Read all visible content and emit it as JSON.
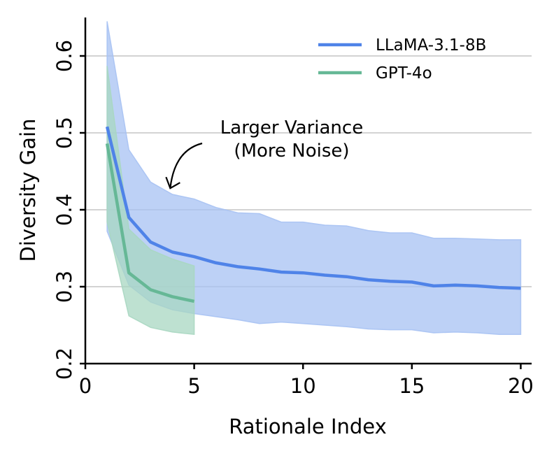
{
  "chart_data": {
    "type": "line",
    "xlabel": "Rationale Index",
    "ylabel": "Diversity Gain",
    "xlim": [
      0,
      20.5
    ],
    "ylim": [
      0.2,
      0.65
    ],
    "xticks": [
      0,
      5,
      10,
      15,
      20
    ],
    "yticks": [
      0.2,
      0.3,
      0.4,
      0.5,
      0.6
    ],
    "xtick_labels": [
      "0",
      "5",
      "10",
      "15",
      "20"
    ],
    "ytick_labels": [
      "0.2",
      "0.3",
      "0.4",
      "0.5",
      "0.6"
    ],
    "grid": "horizontal",
    "legend_position": "top-right",
    "series": [
      {
        "name": "LLaMA-3.1-8B",
        "color": "#4f83e8",
        "band_color": "#a7c2f3",
        "x": [
          1,
          2,
          3,
          4,
          5,
          6,
          7,
          8,
          9,
          10,
          11,
          12,
          13,
          14,
          15,
          16,
          17,
          18,
          19,
          20
        ],
        "values": [
          0.508,
          0.39,
          0.358,
          0.345,
          0.339,
          0.331,
          0.326,
          0.323,
          0.319,
          0.318,
          0.315,
          0.313,
          0.309,
          0.307,
          0.306,
          0.301,
          0.302,
          0.301,
          0.299,
          0.298
        ],
        "upper": [
          0.645,
          0.478,
          0.436,
          0.42,
          0.414,
          0.403,
          0.396,
          0.395,
          0.384,
          0.384,
          0.38,
          0.379,
          0.373,
          0.37,
          0.37,
          0.363,
          0.363,
          0.362,
          0.361,
          0.361
        ],
        "lower": [
          0.372,
          0.302,
          0.28,
          0.27,
          0.265,
          0.261,
          0.257,
          0.252,
          0.254,
          0.252,
          0.25,
          0.248,
          0.245,
          0.244,
          0.244,
          0.24,
          0.241,
          0.24,
          0.238,
          0.238
        ]
      },
      {
        "name": "GPT-4o",
        "color": "#66b896",
        "band_color": "#a8d7c1",
        "x": [
          1,
          2,
          3,
          4,
          5
        ],
        "values": [
          0.486,
          0.318,
          0.296,
          0.287,
          0.281
        ],
        "upper": [
          0.587,
          0.375,
          0.348,
          0.336,
          0.327
        ],
        "lower": [
          0.384,
          0.262,
          0.247,
          0.241,
          0.238
        ]
      }
    ],
    "annotations": [
      {
        "text_lines": [
          "Larger Variance",
          "(More Noise)"
        ],
        "target": {
          "x": 3.9,
          "y": 0.428
        }
      }
    ]
  }
}
